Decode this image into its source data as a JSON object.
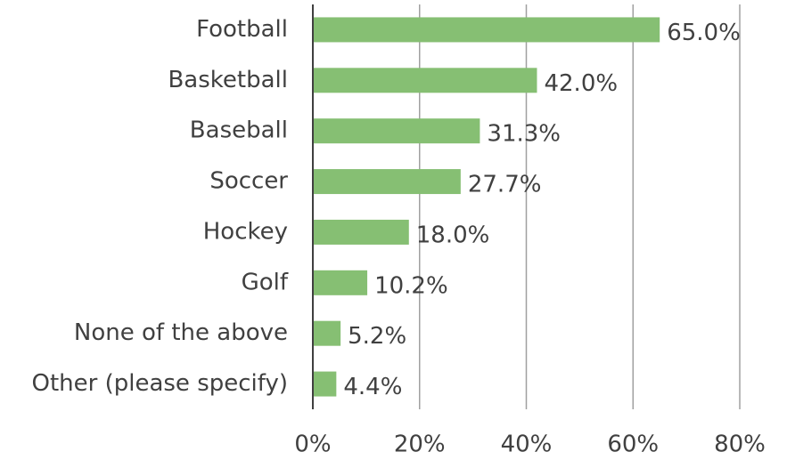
{
  "chart_data": {
    "type": "bar",
    "orientation": "horizontal",
    "categories": [
      "Football",
      "Basketball",
      "Baseball",
      "Soccer",
      "Hockey",
      "Golf",
      "None of the above",
      "Other (please specify)"
    ],
    "values": [
      65.0,
      42.0,
      31.3,
      27.7,
      18.0,
      10.2,
      5.2,
      4.4
    ],
    "value_labels": [
      "65.0%",
      "42.0%",
      "31.3%",
      "27.7%",
      "18.0%",
      "10.2%",
      "5.2%",
      "4.4%"
    ],
    "color": "#86bf73",
    "xlim": [
      0,
      80
    ],
    "xticks": [
      {
        "value": 0,
        "label": "0%"
      },
      {
        "value": 20,
        "label": "20%"
      },
      {
        "value": 40,
        "label": "40%"
      },
      {
        "value": 60,
        "label": "60%"
      },
      {
        "value": 80,
        "label": "80%"
      }
    ],
    "grid": true
  }
}
